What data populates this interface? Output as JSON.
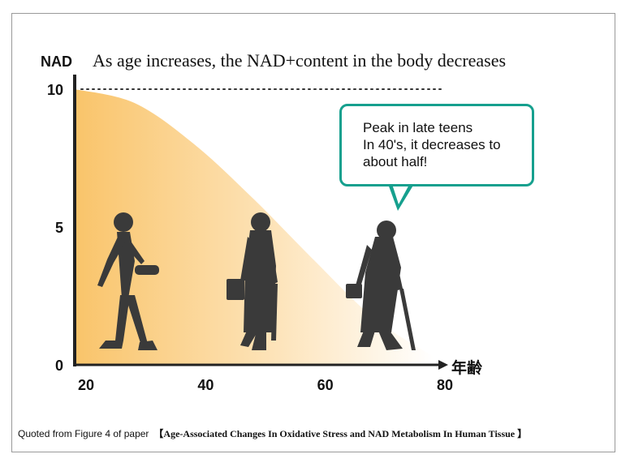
{
  "chart_data": {
    "type": "area",
    "title": "As age increases, the NAD+content in the body decreases",
    "ylabel": "NAD",
    "xlabel": "年齢",
    "x": [
      20,
      30,
      40,
      50,
      60,
      70,
      80
    ],
    "values": [
      10,
      9.5,
      8.0,
      6.0,
      3.8,
      1.7,
      0.3
    ],
    "xlim": [
      20,
      80
    ],
    "ylim": [
      0,
      10
    ],
    "xticks": [
      "20",
      "40",
      "60",
      "80"
    ],
    "yticks": [
      "10",
      "5",
      "0"
    ],
    "reference_line": {
      "y": 10,
      "style": "dotted"
    },
    "fill_color_start": "#f9c46a",
    "fill_color_end": "#ffffff",
    "annotation": {
      "lines": [
        "Peak in late teens",
        "In 40's, it decreases to",
        "about half!"
      ],
      "border_color": "#16a08e"
    }
  },
  "footer": {
    "prefix": "Quoted from Figure 4 of paper",
    "citation": "【Age-Associated Changes In Oxidative Stress and NAD Metabolism In Human Tissue 】"
  }
}
